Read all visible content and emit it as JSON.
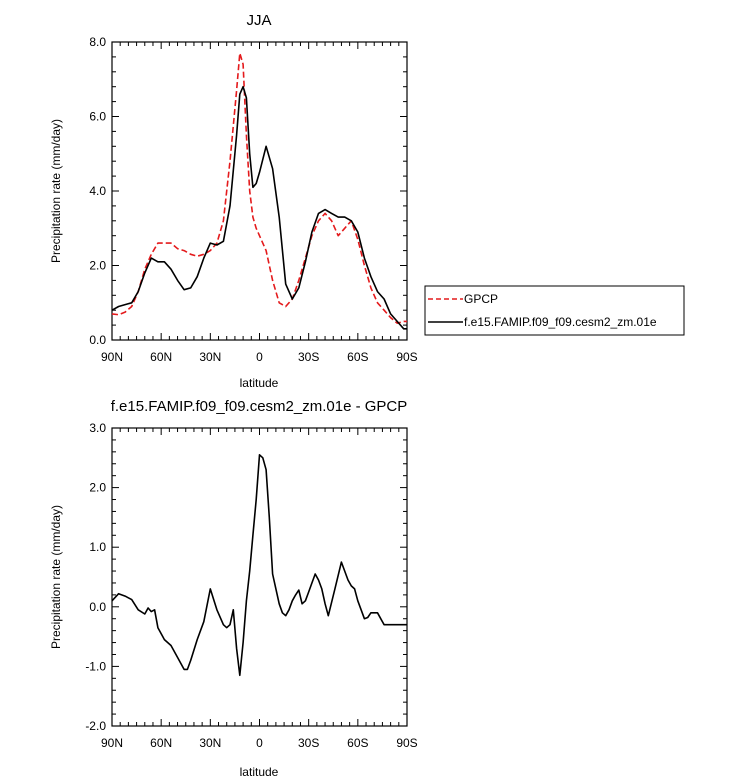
{
  "chart_data": [
    {
      "type": "line",
      "title": "JJA",
      "xlabel": "latitude",
      "ylabel": "Precipitation rate (mm/day)",
      "xlim": [
        90,
        -90
      ],
      "ylim": [
        0,
        8
      ],
      "xticks": [
        {
          "value": 90,
          "label": "90N"
        },
        {
          "value": 60,
          "label": "60N"
        },
        {
          "value": 30,
          "label": "30N"
        },
        {
          "value": 0,
          "label": "0"
        },
        {
          "value": -30,
          "label": "30S"
        },
        {
          "value": -60,
          "label": "60S"
        },
        {
          "value": -90,
          "label": "90S"
        }
      ],
      "yticks": [
        {
          "value": 0,
          "label": "0.0"
        },
        {
          "value": 2,
          "label": "2.0"
        },
        {
          "value": 4,
          "label": "4.0"
        },
        {
          "value": 6,
          "label": "6.0"
        },
        {
          "value": 8,
          "label": "8.0"
        }
      ],
      "legend_placement": "right",
      "series": [
        {
          "name": "GPCP",
          "color": "#e41a1c",
          "dash": "dashed",
          "x": [
            90,
            86,
            82,
            78,
            74,
            70,
            66,
            62,
            58,
            54,
            50,
            46,
            42,
            38,
            34,
            30,
            26,
            22,
            18,
            14,
            12,
            10,
            8,
            6,
            4,
            2,
            0,
            -4,
            -8,
            -12,
            -16,
            -20,
            -24,
            -28,
            -32,
            -36,
            -40,
            -44,
            -48,
            -52,
            -56,
            -60,
            -64,
            -68,
            -72,
            -76,
            -80,
            -84,
            -88,
            -90
          ],
          "y": [
            0.7,
            0.68,
            0.75,
            0.9,
            1.3,
            1.9,
            2.3,
            2.6,
            2.6,
            2.6,
            2.45,
            2.4,
            2.3,
            2.25,
            2.3,
            2.4,
            2.6,
            3.2,
            4.8,
            6.7,
            7.7,
            7.4,
            5.5,
            4.0,
            3.3,
            3.0,
            2.8,
            2.4,
            1.6,
            1.0,
            0.9,
            1.1,
            1.6,
            2.2,
            2.8,
            3.2,
            3.4,
            3.2,
            2.8,
            3.0,
            3.2,
            2.7,
            2.0,
            1.4,
            1.0,
            0.8,
            0.6,
            0.45,
            0.5,
            0.5
          ]
        },
        {
          "name": "f.e15.FAMIP.f09_f09.cesm2_zm.01e",
          "color": "#000000",
          "dash": "solid",
          "x": [
            90,
            86,
            82,
            78,
            74,
            70,
            66,
            62,
            58,
            54,
            50,
            46,
            42,
            38,
            34,
            30,
            26,
            22,
            18,
            14,
            12,
            10,
            8,
            6,
            4,
            2,
            0,
            -4,
            -8,
            -12,
            -16,
            -20,
            -24,
            -28,
            -32,
            -36,
            -40,
            -44,
            -48,
            -52,
            -56,
            -60,
            -64,
            -68,
            -72,
            -76,
            -80,
            -84,
            -88,
            -90
          ],
          "y": [
            0.8,
            0.9,
            0.95,
            1.0,
            1.3,
            1.8,
            2.2,
            2.1,
            2.1,
            1.9,
            1.6,
            1.35,
            1.4,
            1.7,
            2.2,
            2.6,
            2.55,
            2.65,
            3.6,
            5.5,
            6.6,
            6.8,
            6.5,
            5.0,
            4.1,
            4.2,
            4.5,
            5.2,
            4.6,
            3.3,
            1.5,
            1.1,
            1.4,
            2.1,
            2.9,
            3.4,
            3.5,
            3.4,
            3.3,
            3.3,
            3.2,
            2.9,
            2.2,
            1.7,
            1.3,
            1.1,
            0.7,
            0.5,
            0.3,
            0.3
          ]
        }
      ]
    },
    {
      "type": "line",
      "title": "f.e15.FAMIP.f09_f09.cesm2_zm.01e - GPCP",
      "xlabel": "latitude",
      "ylabel": "Precipitation rate (mm/day)",
      "xlim": [
        90,
        -90
      ],
      "ylim": [
        -2,
        3
      ],
      "xticks": [
        {
          "value": 90,
          "label": "90N"
        },
        {
          "value": 60,
          "label": "60N"
        },
        {
          "value": 30,
          "label": "30N"
        },
        {
          "value": 0,
          "label": "0"
        },
        {
          "value": -30,
          "label": "30S"
        },
        {
          "value": -60,
          "label": "60S"
        },
        {
          "value": -90,
          "label": "90S"
        }
      ],
      "yticks": [
        {
          "value": -2,
          "label": "-2.0"
        },
        {
          "value": -1,
          "label": "-1.0"
        },
        {
          "value": 0,
          "label": "0.0"
        },
        {
          "value": 1,
          "label": "1.0"
        },
        {
          "value": 2,
          "label": "2.0"
        },
        {
          "value": 3,
          "label": "3.0"
        }
      ],
      "series": [
        {
          "color": "#000000",
          "dash": "solid",
          "x": [
            90,
            86,
            82,
            78,
            74,
            70,
            68,
            66,
            64,
            62,
            58,
            54,
            50,
            46,
            44,
            42,
            38,
            34,
            30,
            26,
            22,
            20,
            18,
            16,
            14,
            12,
            10,
            8,
            6,
            4,
            2,
            0,
            -2,
            -4,
            -6,
            -8,
            -10,
            -12,
            -14,
            -16,
            -18,
            -20,
            -22,
            -24,
            -26,
            -28,
            -30,
            -32,
            -34,
            -36,
            -38,
            -40,
            -42,
            -46,
            -50,
            -54,
            -56,
            -58,
            -60,
            -64,
            -66,
            -68,
            -72,
            -76,
            -80,
            -84,
            -88,
            -90
          ],
          "y": [
            0.1,
            0.22,
            0.18,
            0.12,
            -0.05,
            -0.12,
            -0.02,
            -0.08,
            -0.05,
            -0.35,
            -0.55,
            -0.65,
            -0.85,
            -1.05,
            -1.05,
            -0.9,
            -0.55,
            -0.25,
            0.3,
            -0.05,
            -0.3,
            -0.35,
            -0.3,
            -0.05,
            -0.7,
            -1.15,
            -0.6,
            0.1,
            0.6,
            1.2,
            1.8,
            2.55,
            2.5,
            2.3,
            1.5,
            0.55,
            0.3,
            0.05,
            -0.1,
            -0.15,
            -0.05,
            0.1,
            0.2,
            0.28,
            0.05,
            0.1,
            0.25,
            0.4,
            0.55,
            0.45,
            0.3,
            0.05,
            -0.15,
            0.3,
            0.75,
            0.45,
            0.35,
            0.3,
            0.1,
            -0.2,
            -0.18,
            -0.1,
            -0.1,
            -0.3,
            -0.3,
            -0.3,
            -0.3,
            -0.3
          ]
        }
      ]
    }
  ]
}
